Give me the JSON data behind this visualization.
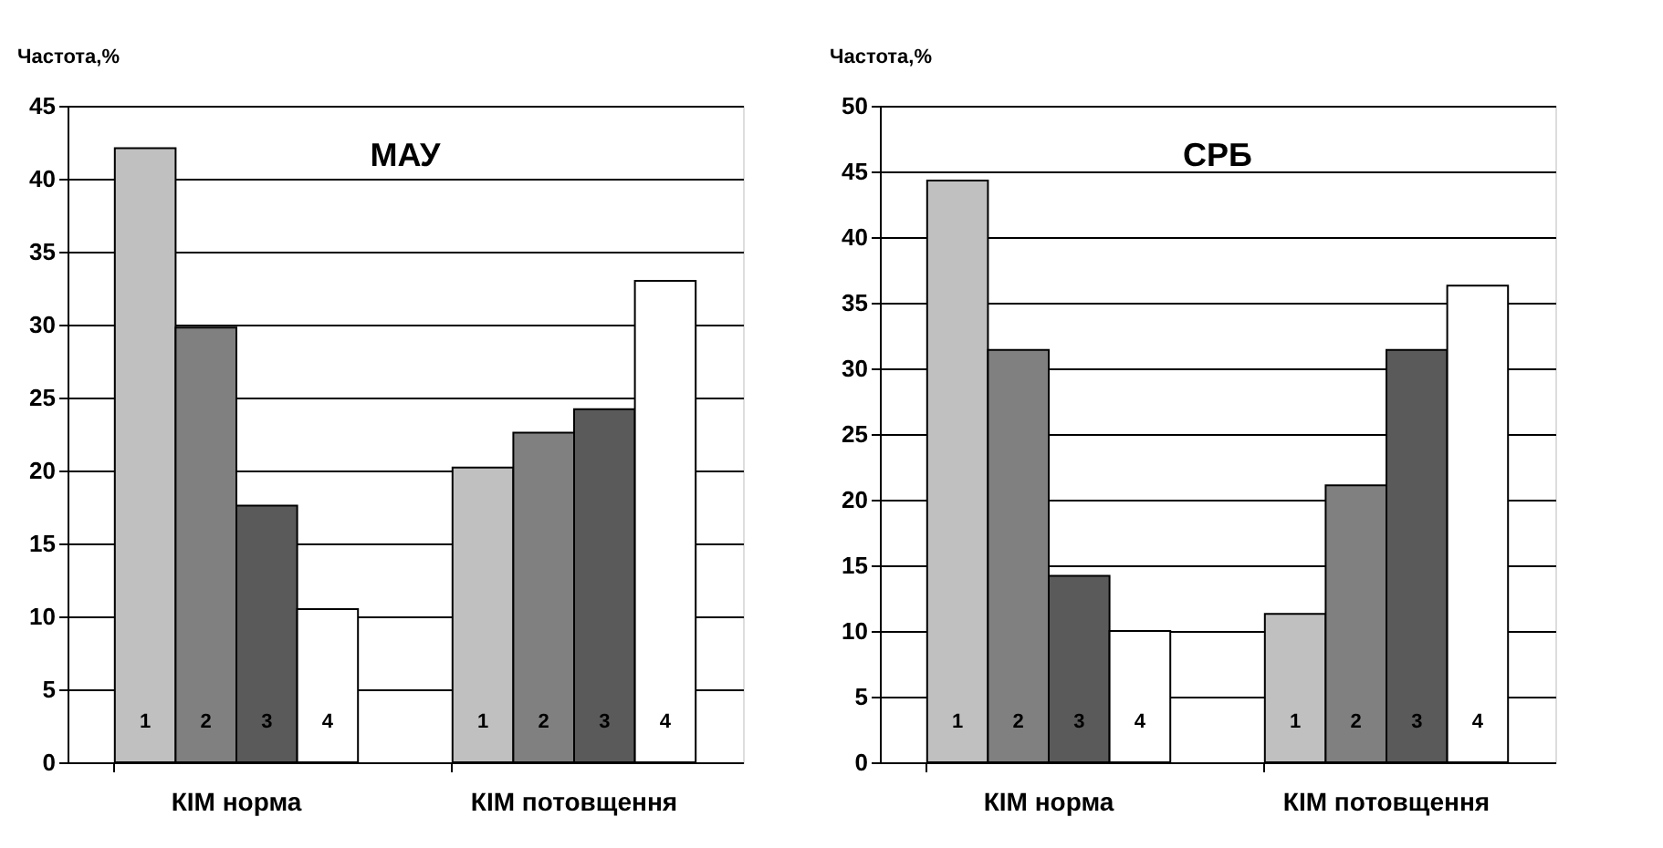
{
  "chart_data": [
    {
      "type": "bar",
      "title": "МАУ",
      "ylabel": "Частота,%",
      "categories": [
        "КІМ норма",
        "КІМ потовщення"
      ],
      "ylim": [
        0,
        45
      ],
      "yticks": [
        0,
        5,
        10,
        15,
        20,
        25,
        30,
        35,
        40,
        45
      ],
      "grid": "y",
      "legend": false,
      "series": [
        {
          "name": "1",
          "color": "#c0c0c0",
          "values": [
            42.1,
            20.2
          ]
        },
        {
          "name": "2",
          "color": "#808080",
          "values": [
            29.8,
            22.6
          ]
        },
        {
          "name": "3",
          "color": "#5a5a5a",
          "values": [
            17.6,
            24.2
          ]
        },
        {
          "name": "4",
          "color": "#ffffff",
          "values": [
            10.5,
            33.0
          ]
        }
      ]
    },
    {
      "type": "bar",
      "title": "СРБ",
      "ylabel": "Частота,%",
      "categories": [
        "КІМ норма",
        "КІМ потовщення"
      ],
      "ylim": [
        0,
        50
      ],
      "yticks": [
        0,
        5,
        10,
        15,
        20,
        25,
        30,
        35,
        40,
        45,
        50
      ],
      "grid": "y",
      "legend": false,
      "series": [
        {
          "name": "1",
          "color": "#c0c0c0",
          "values": [
            44.3,
            11.3
          ]
        },
        {
          "name": "2",
          "color": "#808080",
          "values": [
            31.4,
            21.1
          ]
        },
        {
          "name": "3",
          "color": "#5a5a5a",
          "values": [
            14.2,
            31.4
          ]
        },
        {
          "name": "4",
          "color": "#ffffff",
          "values": [
            10.0,
            36.3
          ]
        }
      ]
    }
  ]
}
